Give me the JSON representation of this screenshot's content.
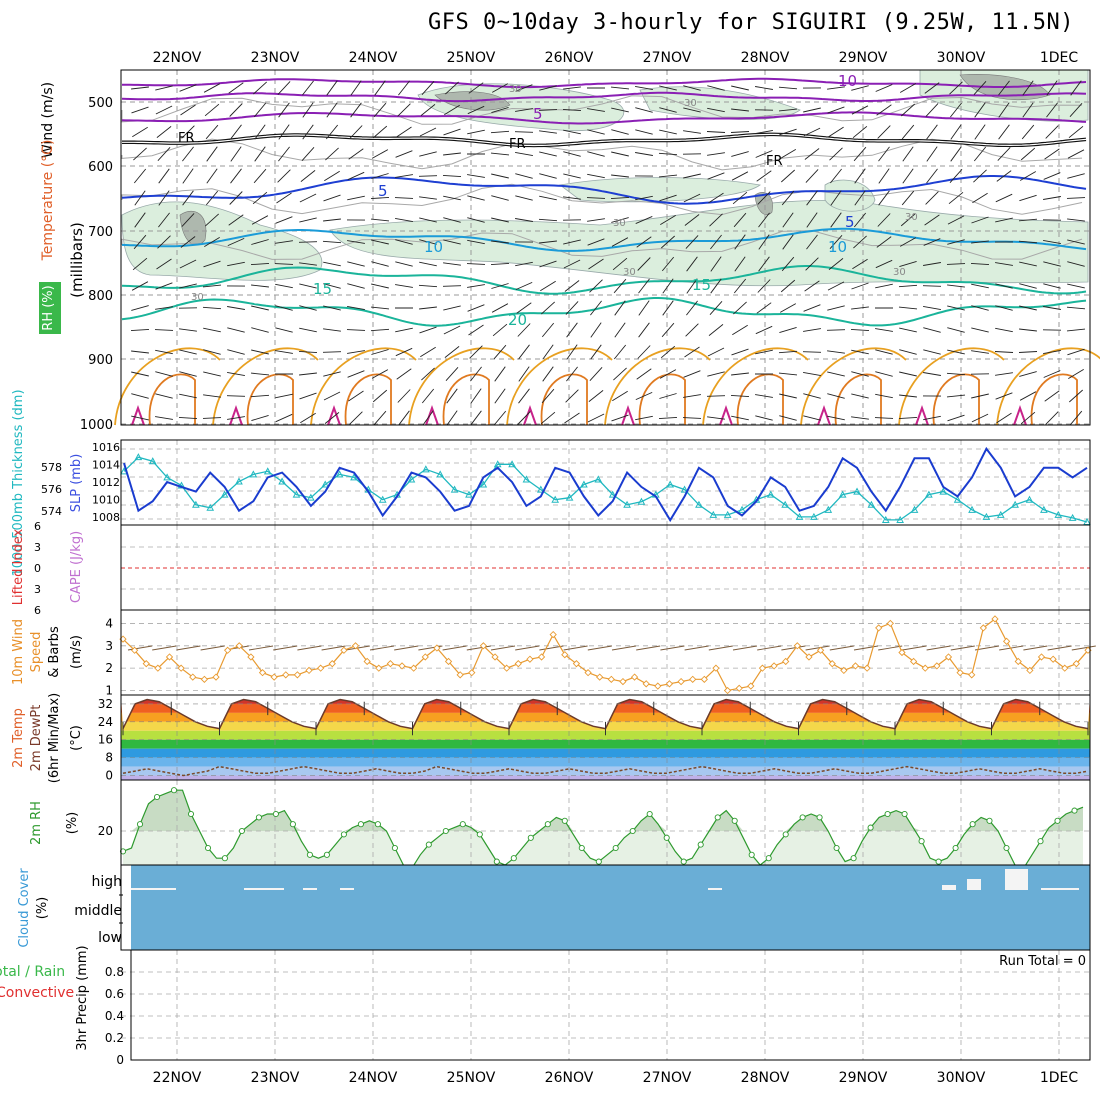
{
  "title": "GFS 0~10day 3-hourly for SIGUIRI (9.25W, 11.5N)",
  "dates": [
    "22NOV",
    "23NOV",
    "24NOV",
    "25NOV",
    "26NOV",
    "27NOV",
    "28NOV",
    "29NOV",
    "30NOV",
    "1DEC"
  ],
  "colors": {
    "wind_purple": "#8a1fb4",
    "temp_blue": "#1e3fd2",
    "temp_lightblue": "#1a9bd8",
    "temp_teal": "#1ab49a",
    "temp_orange": "#e8a020",
    "slp_blue": "#1a3ccf",
    "thickness_cyan": "#20b8c0",
    "wind10m": "#e89a30",
    "rh_green": "#2e9a2e",
    "cloud_blue": "#6aaed6"
  },
  "panels": {
    "upper": {
      "ylabel_wind": "Wind (m/s)",
      "ylabel_temp": "Temperature (°C)",
      "ylabel_rh": "RH (%)",
      "ylabel_mb": "(millibars)",
      "yticks": [
        "500",
        "600",
        "700",
        "800",
        "900",
        "1000"
      ],
      "contour_labels": {
        "w10": "10",
        "w5": "5",
        "fr": "FR",
        "t5": "5",
        "t10": "10",
        "t15": "15",
        "t20": "20",
        "rh30": "30"
      }
    },
    "thickness": {
      "ylabel_left": "1000-500mb Thickness (dm)",
      "ylabel_right": "SLP (mb)",
      "left_ticks": [
        "578",
        "576",
        "574"
      ],
      "right_ticks": [
        "1016",
        "1014",
        "1012",
        "1010",
        "1008"
      ]
    },
    "cape": {
      "ylabel_left": "Lifted Index",
      "ylabel_right": "CAPE (J/kg)",
      "ticks": [
        "6",
        "3",
        "0",
        "3",
        "6"
      ]
    },
    "wind10": {
      "ylabel": "10m Wind Speed & Barbs",
      "units": "(m/s)",
      "ticks": [
        "4",
        "3",
        "2",
        "1"
      ]
    },
    "temp2m": {
      "ylabel": "2m Temp 2m DewPt (6hr Min/Max)",
      "units": "(°C)",
      "ticks": [
        "32",
        "24",
        "16",
        "8",
        "0"
      ]
    },
    "rh2m": {
      "ylabel": "2m RH",
      "units": "(%)",
      "ticks": [
        "20"
      ]
    },
    "cloud": {
      "ylabel": "Cloud Cover",
      "units": "(%)",
      "levels": [
        "high",
        "middle",
        "low"
      ]
    },
    "precip": {
      "ylabel_total": "Total / Rain",
      "ylabel_conv": "Convective",
      "ylabel_units": "3hr Precip (mm)",
      "ticks": [
        "0.8",
        "0.6",
        "0.4",
        "0.2",
        "0"
      ],
      "run_total": "Run Total = 0"
    }
  },
  "chart_data": [
    {
      "type": "line",
      "title": "1000-500mb Thickness (dm) / SLP (mb)",
      "x_unit": "3-hourly steps from 21NOV 12Z",
      "series": [
        {
          "name": "SLP (mb)",
          "values": [
            1014.5,
            1009.5,
            1010.5,
            1012.5,
            1012,
            1011.5,
            1013.5,
            1012,
            1009.5,
            1010.5,
            1013,
            1013.5,
            1012,
            1010,
            1011.5,
            1014,
            1013.5,
            1011.5,
            1009,
            1011,
            1013.5,
            1013,
            1011.5,
            1009.5,
            1010,
            1013,
            1014,
            1012.5,
            1010,
            1011,
            1014,
            1013.5,
            1011,
            1009,
            1010.5,
            1013.5,
            1012,
            1011,
            1008.5,
            1011,
            1014,
            1013,
            1010,
            1009,
            1010.5,
            1013,
            1012,
            1009.5,
            1010,
            1012,
            1015,
            1014,
            1011.5,
            1009.5,
            1012,
            1015,
            1015,
            1012,
            1011,
            1013,
            1016,
            1014,
            1011,
            1012,
            1014,
            1014,
            1013,
            1014
          ]
        },
        {
          "name": "1000-500mb Thickness (dm)",
          "values": [
            578.8,
            580.2,
            579.8,
            578.2,
            577.4,
            575.5,
            575.2,
            576.5,
            577.8,
            578.5,
            578.8,
            577.8,
            576.5,
            576.2,
            577.5,
            578.5,
            578.2,
            577,
            576,
            576.5,
            578,
            579,
            578.5,
            577,
            576.5,
            577.5,
            579.5,
            579.5,
            578,
            577,
            576,
            576.2,
            577.5,
            578,
            576.5,
            575.5,
            575.8,
            576.5,
            577.5,
            577,
            575.5,
            574.5,
            574.5,
            575,
            576,
            576.5,
            575.5,
            574.3,
            574.3,
            575,
            576.5,
            576.8,
            575.5,
            574,
            574,
            575,
            576.5,
            576.8,
            576,
            575,
            574.3,
            574.5,
            575.5,
            576,
            575,
            574.5,
            574.2,
            573.8
          ]
        }
      ],
      "ylim_slp": [
        1008,
        1016.5
      ],
      "ylim_thickness": [
        573.5,
        581.5
      ]
    },
    {
      "type": "line",
      "title": "10m Wind Speed (m/s)",
      "ylim": [
        0.8,
        4.6
      ],
      "series": [
        {
          "name": "10m Wind Speed",
          "values": [
            3.3,
            2.8,
            2.2,
            2.0,
            2.5,
            2.0,
            1.6,
            1.5,
            1.6,
            2.8,
            3.0,
            2.5,
            1.8,
            1.6,
            1.7,
            1.7,
            1.9,
            2.0,
            2.2,
            2.8,
            3.0,
            2.3,
            2.0,
            2.2,
            2.1,
            2.0,
            2.5,
            2.9,
            2.3,
            1.7,
            1.8,
            3.0,
            2.5,
            2.0,
            2.2,
            2.4,
            2.5,
            3.5,
            2.6,
            2.2,
            1.8,
            1.6,
            1.5,
            1.4,
            1.6,
            1.3,
            1.2,
            1.3,
            1.4,
            1.5,
            1.5,
            2.0,
            1.0,
            1.1,
            1.2,
            2.0,
            2.1,
            2.3,
            3.0,
            2.5,
            2.8,
            2.2,
            1.9,
            2.1,
            2.0,
            3.8,
            4.0,
            2.7,
            2.3,
            2.0,
            2.1,
            2.5,
            1.8,
            1.7,
            3.8,
            4.2,
            3.2,
            2.3,
            1.9,
            2.5,
            2.4,
            2.0,
            2.2,
            2.8
          ]
        }
      ]
    },
    {
      "type": "line",
      "title": "2m Temp / 2m DewPt (°C)",
      "ylim": [
        -2,
        36
      ],
      "series": [
        {
          "name": "2m Temp",
          "values": [
            21,
            32,
            34,
            33,
            30,
            27,
            24,
            22,
            21,
            32,
            34,
            33,
            30,
            27,
            24,
            22,
            21,
            32,
            34,
            33,
            30,
            27,
            24,
            22,
            21,
            32,
            34,
            33,
            30,
            27,
            24,
            22,
            21,
            32,
            34,
            33,
            30,
            27,
            24,
            22,
            21,
            32,
            34,
            33,
            30,
            27,
            24,
            22,
            21,
            32,
            34,
            33,
            30,
            27,
            24,
            22,
            21,
            32,
            34,
            33,
            30,
            27,
            24,
            22,
            21,
            32,
            34,
            33,
            30,
            27,
            24,
            22,
            21,
            32,
            34,
            33,
            30,
            27,
            24,
            22,
            21
          ]
        },
        {
          "name": "2m DewPt",
          "values": [
            1,
            2,
            3,
            2,
            1,
            0,
            1,
            2,
            4,
            3,
            2,
            1,
            1,
            2,
            3,
            4,
            3,
            2,
            1,
            1,
            2,
            3,
            2,
            1,
            1,
            2,
            4,
            3,
            2,
            1,
            1,
            2,
            3,
            2,
            1,
            1,
            2,
            3,
            2,
            1,
            1,
            2,
            3,
            2,
            1,
            1,
            2,
            3,
            4,
            3,
            2,
            1,
            1,
            2,
            3,
            2,
            1,
            1,
            2,
            3,
            2,
            1,
            1,
            2,
            3,
            4,
            3,
            2,
            1,
            1,
            2,
            3,
            2,
            1,
            1,
            2,
            3,
            2,
            1,
            1,
            2
          ]
        }
      ]
    },
    {
      "type": "area",
      "title": "2m RH (%)",
      "ylim": [
        10,
        35
      ],
      "series": [
        {
          "name": "2m RH",
          "values": [
            14,
            15,
            22,
            28,
            30,
            31,
            32,
            32,
            25,
            20,
            15,
            12,
            12,
            15,
            20,
            22,
            24,
            25,
            25,
            26,
            22,
            17,
            13,
            12,
            13,
            16,
            19,
            21,
            22,
            23,
            22,
            20,
            15,
            10,
            9,
            13,
            16,
            18,
            20,
            21,
            22,
            21,
            19,
            15,
            11,
            10,
            12,
            15,
            18,
            20,
            22,
            24,
            23,
            19,
            15,
            12,
            11,
            13,
            15,
            18,
            20,
            23,
            25,
            22,
            18,
            14,
            11,
            12,
            16,
            20,
            24,
            26,
            23,
            18,
            13,
            10,
            12,
            16,
            19,
            22,
            24,
            25,
            24,
            20,
            15,
            11,
            12,
            17,
            21,
            24,
            25,
            26,
            25,
            21,
            17,
            12,
            11,
            12,
            15,
            19,
            22,
            24,
            23,
            20,
            15,
            10,
            9,
            13,
            17,
            21,
            23,
            25,
            26,
            27
          ]
        }
      ]
    },
    {
      "type": "bar",
      "title": "3hr Precip (mm)",
      "ylim": [
        0,
        1
      ],
      "series": [
        {
          "name": "Total / Rain",
          "values": []
        },
        {
          "name": "Convective",
          "values": []
        }
      ],
      "annotation": "Run Total = 0"
    }
  ]
}
